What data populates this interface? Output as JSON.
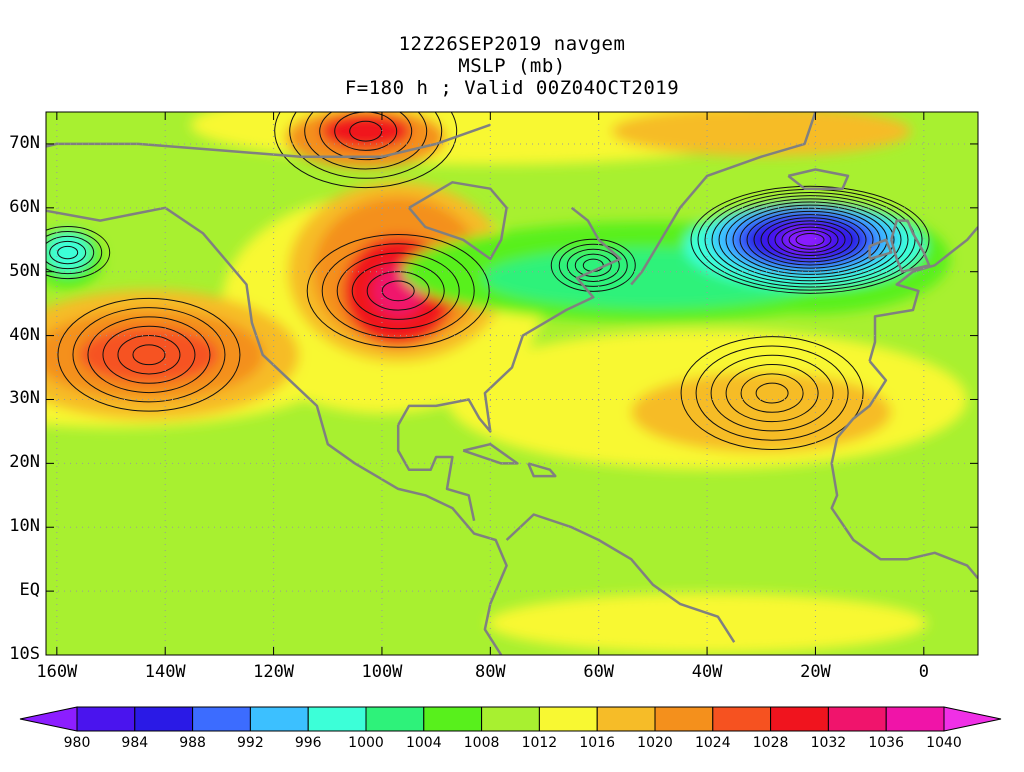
{
  "title": {
    "line1": "12Z26SEP2019 navgem",
    "line2": "MSLP (mb)",
    "line3": "F=180 h ; Valid 00Z04OCT2019"
  },
  "map": {
    "lon_range": [
      -162,
      10
    ],
    "lat_range": [
      -10,
      75
    ],
    "lat_labels": [
      "70N",
      "60N",
      "50N",
      "40N",
      "30N",
      "20N",
      "10N",
      "EQ",
      "10S"
    ],
    "lat_values": [
      70,
      60,
      50,
      40,
      30,
      20,
      10,
      0,
      -10
    ],
    "lon_labels": [
      "160W",
      "140W",
      "120W",
      "100W",
      "80W",
      "60W",
      "40W",
      "20W",
      "0"
    ],
    "lon_values": [
      -160,
      -140,
      -120,
      -100,
      -80,
      -60,
      -40,
      -20,
      0
    ],
    "pressure_centers": [
      {
        "lon": -21,
        "lat": 55,
        "value": 976,
        "kind": "low"
      },
      {
        "lon": -61,
        "lat": 51,
        "value": 1000,
        "kind": "low"
      },
      {
        "lon": -158,
        "lat": 53,
        "value": 998,
        "kind": "low"
      },
      {
        "lon": -143,
        "lat": 37,
        "value": 1026,
        "kind": "high"
      },
      {
        "lon": -97,
        "lat": 47,
        "value": 1032,
        "kind": "high"
      },
      {
        "lon": -103,
        "lat": 72,
        "value": 1030,
        "kind": "high"
      },
      {
        "lon": -28,
        "lat": 31,
        "value": 1020,
        "kind": "high"
      }
    ]
  },
  "colorbar": {
    "labels": [
      "980",
      "984",
      "988",
      "992",
      "996",
      "1000",
      "1004",
      "1008",
      "1012",
      "1016",
      "1020",
      "1024",
      "1028",
      "1032",
      "1036",
      "1040"
    ],
    "colors": [
      "#8c1eff",
      "#4a14ee",
      "#2a1ae6",
      "#3c6cff",
      "#3cc0ff",
      "#3cffd8",
      "#2ef27a",
      "#58f01c",
      "#a8f030",
      "#f8f832",
      "#f6bc28",
      "#f4901c",
      "#f65220",
      "#f0141e",
      "#f0146c",
      "#f014a8",
      "#f030e6"
    ]
  }
}
